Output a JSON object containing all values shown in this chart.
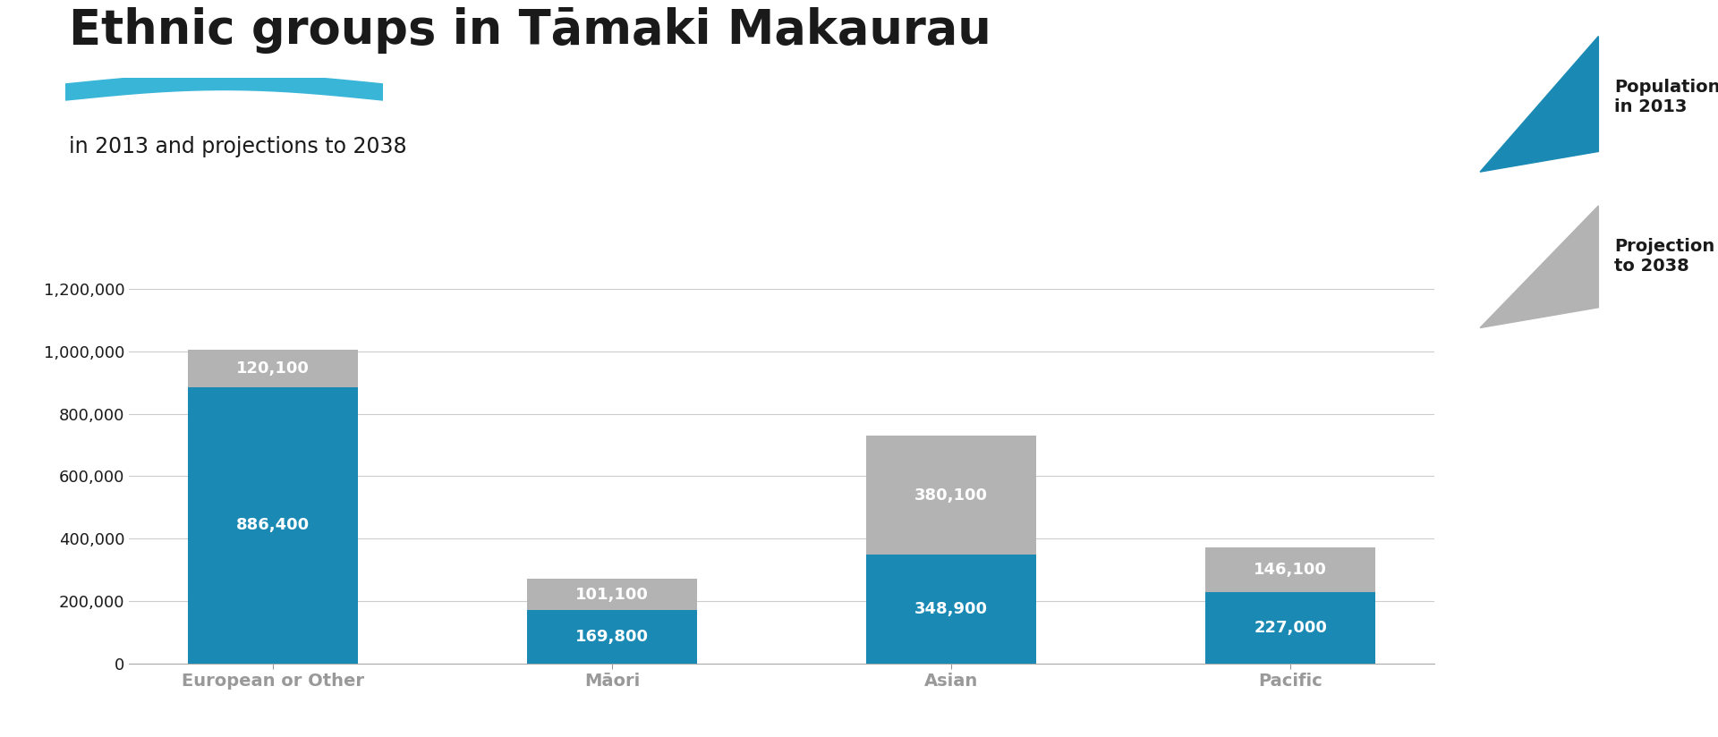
{
  "title": "Ethnic groups in Tāmaki Makaurau",
  "subtitle": "in 2013 and projections to 2038",
  "categories": [
    "European or Other",
    "Māori",
    "Asian",
    "Pacific"
  ],
  "population_2013": [
    886400,
    169800,
    348900,
    227000
  ],
  "projection_2038": [
    120100,
    101100,
    380100,
    146100
  ],
  "bar_color_2013": "#1a8ab5",
  "bar_color_proj": "#b3b3b3",
  "ylim": [
    0,
    1300000
  ],
  "yticks": [
    0,
    200000,
    400000,
    600000,
    800000,
    1000000,
    1200000
  ],
  "title_fontsize": 38,
  "subtitle_fontsize": 17,
  "tick_fontsize": 13,
  "annotation_fontsize": 13,
  "legend_fontsize": 14,
  "background_color": "#ffffff",
  "text_color": "#1a1a1a",
  "legend_label_2013": "Population\nin 2013",
  "legend_label_proj": "Projection\nto 2038",
  "underline_color": "#39b5d8",
  "bar_width": 0.5
}
